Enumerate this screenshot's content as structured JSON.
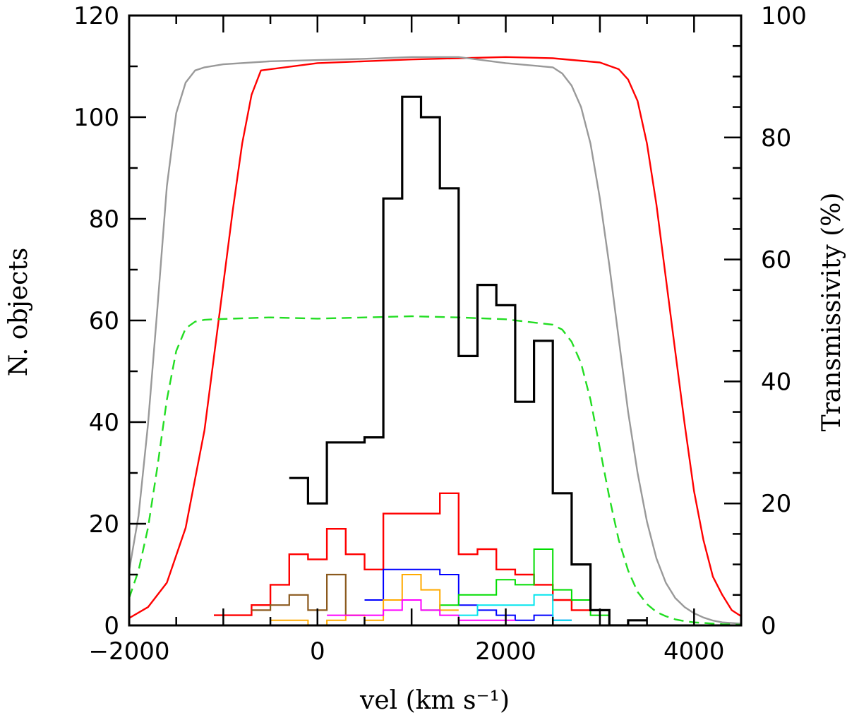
{
  "chart_data": {
    "type": "line",
    "title": "",
    "xlabel": "vel  (km s⁻¹)",
    "ylabel": "N. objects",
    "y2label": "Transmissivity (%)",
    "xlim": [
      -2000,
      4500
    ],
    "ylim": [
      0,
      120
    ],
    "y2lim": [
      0,
      100
    ],
    "xticks": [
      -2000,
      0,
      2000,
      4000
    ],
    "xtick_labels": [
      "−2000",
      "0",
      "2000",
      "4000"
    ],
    "yticks": [
      0,
      20,
      40,
      60,
      80,
      100,
      120
    ],
    "ytick_labels": [
      "0",
      "20",
      "40",
      "60",
      "80",
      "100",
      "120"
    ],
    "y2ticks": [
      0,
      20,
      40,
      60,
      80,
      100
    ],
    "y2tick_labels": [
      "0",
      "20",
      "40",
      "60",
      "80",
      "100"
    ],
    "histograms": [
      {
        "name": "all",
        "color": "#000000",
        "width": 3.2,
        "edges": [
          -300,
          -100,
          100,
          300,
          500,
          700,
          900,
          1100,
          1300,
          1500,
          1700,
          1900,
          2100,
          2300,
          2500,
          2700,
          2900,
          3100,
          3300,
          3500
        ],
        "counts": [
          29,
          24,
          36,
          36,
          37,
          84,
          104,
          100,
          86,
          53,
          67,
          63,
          44,
          56,
          26,
          12,
          3,
          0,
          1
        ]
      },
      {
        "name": "red-subset",
        "color": "#ff0000",
        "width": 2.4,
        "edges": [
          -1100,
          -900,
          -700,
          -500,
          -300,
          -100,
          100,
          300,
          500,
          700,
          900,
          1100,
          1300,
          1500,
          1700,
          1900,
          2100,
          2300,
          2500,
          2700,
          2900
        ],
        "counts": [
          2,
          2,
          4,
          8,
          14,
          13,
          19,
          14,
          11,
          22,
          22,
          22,
          26,
          14,
          15,
          11,
          10,
          8,
          5,
          3
        ]
      },
      {
        "name": "blue-subset",
        "color": "#0000ff",
        "width": 2.0,
        "edges": [
          500,
          700,
          900,
          1100,
          1300,
          1500,
          1700,
          1900,
          2100,
          2300,
          2500,
          2700
        ],
        "counts": [
          5,
          11,
          11,
          11,
          10,
          4,
          3,
          2,
          1,
          2,
          1
        ]
      },
      {
        "name": "green-subset",
        "color": "#00dd00",
        "width": 2.0,
        "edges": [
          1100,
          1300,
          1500,
          1700,
          1900,
          2100,
          2300,
          2500,
          2700,
          2900,
          3100
        ],
        "counts": [
          3,
          4,
          6,
          6,
          9,
          8,
          15,
          7,
          5,
          2
        ]
      },
      {
        "name": "brown-subset",
        "color": "#8b5a1e",
        "width": 2.2,
        "edges": [
          -700,
          -500,
          -300,
          -100,
          100,
          300,
          500
        ],
        "counts": [
          3,
          4,
          6,
          3,
          10,
          2
        ]
      },
      {
        "name": "orange-subset",
        "color": "#ffaa00",
        "width": 2.0,
        "edges": [
          -500,
          -300,
          -100,
          100,
          300,
          500,
          700,
          900,
          1100,
          1300,
          1500
        ],
        "counts": [
          1,
          1,
          0,
          1,
          2,
          1,
          5,
          10,
          7,
          3
        ]
      },
      {
        "name": "magenta-subset",
        "color": "#ff00ff",
        "width": 2.0,
        "edges": [
          100,
          300,
          500,
          700,
          900,
          1100,
          1300,
          1500,
          1700,
          1900,
          2100
        ],
        "counts": [
          2,
          2,
          2,
          3,
          5,
          3,
          2,
          1,
          1,
          1
        ]
      },
      {
        "name": "cyan-subset",
        "color": "#00e5ee",
        "width": 2.0,
        "edges": [
          1500,
          1700,
          1900,
          2100,
          2300,
          2500,
          2700
        ],
        "counts": [
          2,
          4,
          4,
          4,
          6,
          1
        ]
      }
    ],
    "transmissivity_curves": [
      {
        "name": "red-filter",
        "color": "#ff0000",
        "style": "solid",
        "v": [
          -2000,
          -1800,
          -1600,
          -1400,
          -1200,
          -1000,
          -900,
          -800,
          -700,
          -600,
          0,
          500,
          1000,
          1500,
          2000,
          2500,
          3000,
          3200,
          3300,
          3400,
          3500,
          3600,
          3700,
          3800,
          3900,
          4000,
          4100,
          4200,
          4300,
          4400,
          4500
        ],
        "t": [
          1.2,
          3,
          7,
          16,
          32,
          56,
          68,
          79,
          87,
          91,
          92.2,
          92.5,
          92.8,
          93.0,
          93.2,
          93.0,
          92.3,
          91.2,
          89.5,
          86,
          79,
          69,
          57,
          45,
          33,
          22,
          14,
          8,
          5,
          2.5,
          1.5
        ]
      },
      {
        "name": "grey-filter",
        "color": "#999999",
        "style": "solid",
        "v": [
          -2000,
          -1900,
          -1800,
          -1700,
          -1600,
          -1500,
          -1400,
          -1300,
          -1200,
          -1000,
          -500,
          0,
          500,
          1000,
          1500,
          2000,
          2500,
          2600,
          2700,
          2800,
          2900,
          3000,
          3100,
          3200,
          3300,
          3400,
          3500,
          3600,
          3700,
          3800,
          3900,
          4000,
          4100,
          4200,
          4300,
          4500
        ],
        "t": [
          9,
          18,
          33,
          52,
          72,
          84,
          89,
          91,
          91.5,
          92,
          92.5,
          92.7,
          92.9,
          93.2,
          93.2,
          92.2,
          91.5,
          90.5,
          88.5,
          85,
          79,
          70,
          59,
          47,
          35,
          25,
          17,
          11,
          7,
          4.5,
          3,
          2,
          1.3,
          0.8,
          0.5,
          0.3
        ]
      },
      {
        "name": "green-filter",
        "color": "#22dd22",
        "style": "dashed",
        "v": [
          -2000,
          -1900,
          -1800,
          -1700,
          -1600,
          -1500,
          -1400,
          -1300,
          -1200,
          -1100,
          -900,
          -500,
          0,
          500,
          1000,
          1500,
          2000,
          2500,
          2600,
          2700,
          2800,
          2900,
          3000,
          3100,
          3200,
          3300,
          3400,
          3500,
          3600,
          3700,
          3800,
          3900,
          4000,
          4100,
          4200,
          4300,
          4500
        ],
        "t": [
          4.5,
          9,
          16,
          26,
          37,
          45,
          48.7,
          49.8,
          50.1,
          50.2,
          50.3,
          50.5,
          50.3,
          50.5,
          50.7,
          50.5,
          50.2,
          49.3,
          48.5,
          46.5,
          43,
          37,
          29,
          21,
          14,
          9,
          5.5,
          3.5,
          2.2,
          1.5,
          1.0,
          0.7,
          0.5,
          0.4,
          0.3,
          0.2,
          0.1
        ]
      }
    ]
  }
}
